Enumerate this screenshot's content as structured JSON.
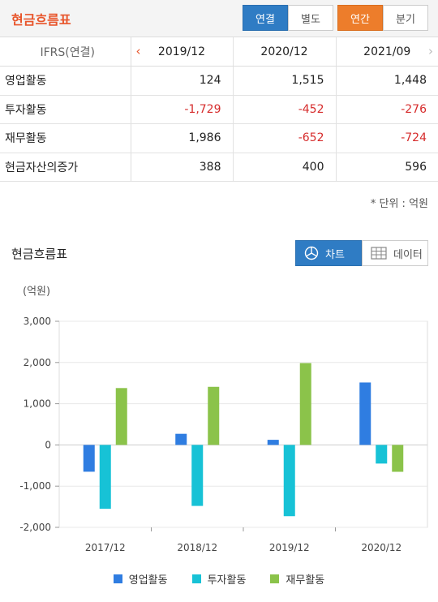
{
  "header": {
    "title": "현금흐름표",
    "btn_consolidated": "연결",
    "btn_separate": "별도",
    "btn_annual": "연간",
    "btn_quarter": "분기"
  },
  "table": {
    "corner": "IFRS(연결)",
    "periods": [
      "2019/12",
      "2020/12",
      "2021/09"
    ],
    "rows": [
      {
        "label": "영업활동",
        "values": [
          "124",
          "1,515",
          "1,448"
        ]
      },
      {
        "label": "투자활동",
        "values": [
          "-1,729",
          "-452",
          "-276"
        ]
      },
      {
        "label": "재무활동",
        "values": [
          "1,986",
          "-652",
          "-724"
        ]
      },
      {
        "label": "현금자산의증가",
        "values": [
          "388",
          "400",
          "596"
        ]
      }
    ],
    "unit": "* 단위 : 억원"
  },
  "chart_section": {
    "title": "현금흐름표",
    "tab_chart": "차트",
    "tab_data": "데이터"
  },
  "colors": {
    "brand": "#e8552b",
    "selected_blue": "#2f7cc4",
    "selected_orange": "#ed7d2b",
    "negative": "#d62c2c"
  },
  "chart_data": {
    "type": "bar",
    "ylabel": "(억원)",
    "categories": [
      "2017/12",
      "2018/12",
      "2019/12",
      "2020/12"
    ],
    "ylim": [
      -2000,
      3000
    ],
    "yticks": [
      "3,000",
      "2,000",
      "1,000",
      "0",
      "-1,000",
      "-2,000"
    ],
    "ytick_values": [
      3000,
      2000,
      1000,
      0,
      -1000,
      -2000
    ],
    "grid": true,
    "legend": "bottom",
    "series": [
      {
        "name": "영업활동",
        "color": "#2f7de1",
        "values": [
          -650,
          270,
          124,
          1515
        ]
      },
      {
        "name": "투자활동",
        "color": "#17c2d6",
        "values": [
          -1550,
          -1480,
          -1729,
          -452
        ]
      },
      {
        "name": "재무활동",
        "color": "#8bc34a",
        "values": [
          1380,
          1410,
          1986,
          -652
        ]
      }
    ]
  }
}
